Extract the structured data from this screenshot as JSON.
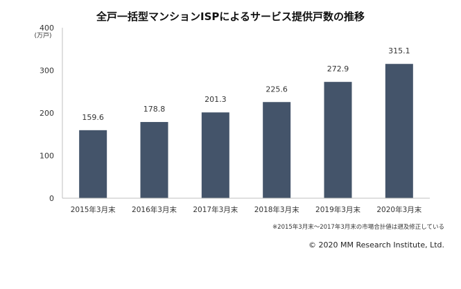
{
  "chart_data": {
    "type": "bar",
    "title": "全戸一括型マンションISPによるサービス提供戸数の推移",
    "ylabel": "(万戸)",
    "xlabel": "",
    "categories": [
      "2015年3月末",
      "2016年3月末",
      "2017年3月末",
      "2018年3月末",
      "2019年3月末",
      "2020年3月末"
    ],
    "values": [
      159.6,
      178.8,
      201.3,
      225.6,
      272.9,
      315.1
    ],
    "data_labels": [
      "159.6",
      "178.8",
      "201.3",
      "225.6",
      "272.9",
      "315.1"
    ],
    "yticks": [
      "0",
      "100",
      "200",
      "300",
      "400"
    ],
    "ylim": [
      0,
      400
    ],
    "grid": false,
    "legend": "none",
    "bar_color": "#44546a"
  },
  "footnote": "※2015年3月末～2017年3月末の市場合計値は遡及修正している",
  "copyright": "© 2020 MM Research Institute, Ltd."
}
